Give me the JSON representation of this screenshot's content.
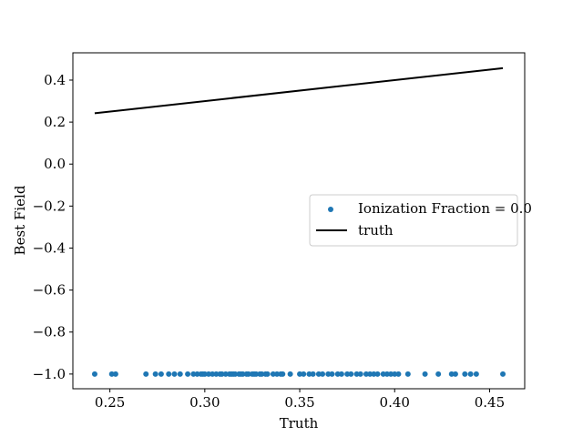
{
  "chart_data": {
    "type": "scatter",
    "xlabel": "Truth",
    "ylabel": "Best Field",
    "xlim": [
      0.2305,
      0.4685
    ],
    "ylim": [
      -1.07,
      0.53
    ],
    "x_ticks": [
      0.25,
      0.3,
      0.35,
      0.4,
      0.45
    ],
    "y_ticks": [
      0.4,
      0.2,
      0.0,
      -0.2,
      -0.4,
      -0.6,
      -0.8,
      -1.0
    ],
    "x_tick_labels": [
      "0.25",
      "0.30",
      "0.35",
      "0.40",
      "0.45"
    ],
    "y_tick_labels": [
      "0.4",
      "0.2",
      "0.0",
      "−0.2",
      "−0.4",
      "−0.6",
      "−0.8",
      "−1.0"
    ],
    "grid": false,
    "legend_position": "center-right",
    "series": [
      {
        "name": "Ionization Fraction = 0.0",
        "kind": "scatter",
        "color": "#1f77b4",
        "x": [
          0.242,
          0.251,
          0.253,
          0.269,
          0.274,
          0.277,
          0.281,
          0.284,
          0.287,
          0.291,
          0.294,
          0.296,
          0.298,
          0.299,
          0.3,
          0.302,
          0.304,
          0.306,
          0.308,
          0.309,
          0.311,
          0.313,
          0.314,
          0.315,
          0.316,
          0.318,
          0.319,
          0.32,
          0.322,
          0.323,
          0.325,
          0.326,
          0.327,
          0.329,
          0.33,
          0.332,
          0.333,
          0.336,
          0.338,
          0.34,
          0.341,
          0.345,
          0.35,
          0.352,
          0.355,
          0.357,
          0.36,
          0.362,
          0.365,
          0.367,
          0.37,
          0.372,
          0.375,
          0.377,
          0.38,
          0.382,
          0.385,
          0.387,
          0.389,
          0.391,
          0.394,
          0.396,
          0.398,
          0.4,
          0.402,
          0.407,
          0.416,
          0.423,
          0.43,
          0.432,
          0.437,
          0.44,
          0.443,
          0.457
        ],
        "y": [
          -1.0,
          -1.0,
          -1.0,
          -1.0,
          -1.0,
          -1.0,
          -1.0,
          -1.0,
          -1.0,
          -1.0,
          -1.0,
          -1.0,
          -1.0,
          -1.0,
          -1.0,
          -1.0,
          -1.0,
          -1.0,
          -1.0,
          -1.0,
          -1.0,
          -1.0,
          -1.0,
          -1.0,
          -1.0,
          -1.0,
          -1.0,
          -1.0,
          -1.0,
          -1.0,
          -1.0,
          -1.0,
          -1.0,
          -1.0,
          -1.0,
          -1.0,
          -1.0,
          -1.0,
          -1.0,
          -1.0,
          -1.0,
          -1.0,
          -1.0,
          -1.0,
          -1.0,
          -1.0,
          -1.0,
          -1.0,
          -1.0,
          -1.0,
          -1.0,
          -1.0,
          -1.0,
          -1.0,
          -1.0,
          -1.0,
          -1.0,
          -1.0,
          -1.0,
          -1.0,
          -1.0,
          -1.0,
          -1.0,
          -1.0,
          -1.0,
          -1.0,
          -1.0,
          -1.0,
          -1.0,
          -1.0,
          -1.0,
          -1.0,
          -1.0,
          -1.0
        ]
      },
      {
        "name": "truth",
        "kind": "line",
        "color": "#000000",
        "x": [
          0.242,
          0.457
        ],
        "y": [
          0.242,
          0.457
        ]
      }
    ]
  }
}
